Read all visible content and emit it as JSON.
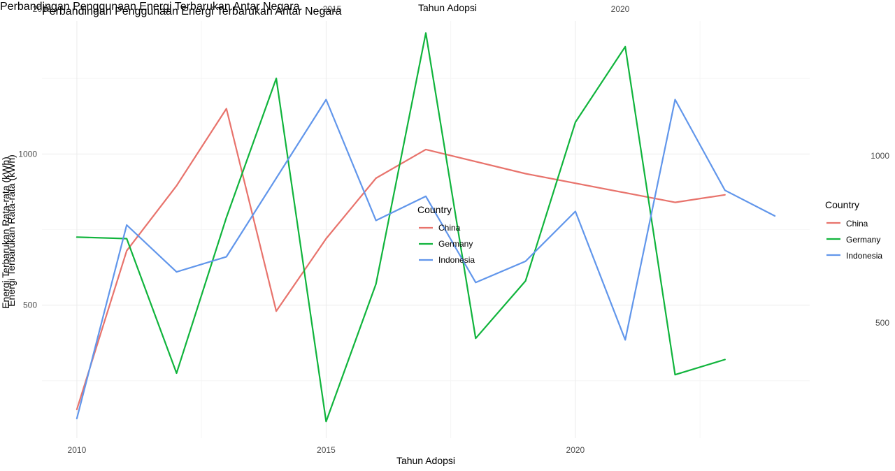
{
  "colors": {
    "China": "#e8736c",
    "Germany": "#10b43c",
    "Indonesia": "#6196eb",
    "grid": "#ebebeb",
    "text": "#4d4d4d"
  },
  "chart_data": {
    "type": "line",
    "title": "Perbandingan Penggunaan Energi Terbarukan Antar Negara",
    "ghost_title": "Perbandingan Penggunaan Energi Terbarukan Antar Negara",
    "xlabel": "Tahun Adopsi",
    "top_xlabel": "Tahun Adopsi",
    "ylabel": "Energi Terbarukan Rata-rata (kWh)",
    "ghost_ylabel": "Energi Terbarukan Rata-rata (kWh)",
    "x_ticks": [
      "2010",
      "2015",
      "2020"
    ],
    "y_ticks": [
      "500",
      "1000"
    ],
    "top_ticks": [
      "2010",
      "2015",
      "2020"
    ],
    "right_ticks": [
      "500",
      "1000"
    ],
    "xlim": [
      2009.3,
      2024.7
    ],
    "ylim": [
      60,
      1440
    ],
    "grid": true,
    "legend": {
      "title": "Country",
      "placement": "right",
      "entries": [
        "China",
        "Germany",
        "Indonesia"
      ]
    },
    "inner_legend": {
      "title": "Country",
      "placement": "center",
      "entries": [
        "China",
        "Germany",
        "Indonesia"
      ]
    },
    "series": [
      {
        "name": "China",
        "x": [
          2010,
          2011,
          2012,
          2013,
          2014,
          2015,
          2016,
          2017,
          2019,
          2022,
          2023
        ],
        "y": [
          155,
          680,
          895,
          1150,
          480,
          720,
          920,
          1015,
          935,
          840,
          865
        ]
      },
      {
        "name": "Germany",
        "x": [
          2010,
          2011,
          2012,
          2013,
          2014,
          2015,
          2016,
          2017,
          2018,
          2019,
          2020,
          2021,
          2022,
          2023
        ],
        "y": [
          725,
          720,
          275,
          790,
          1250,
          115,
          570,
          1400,
          390,
          580,
          1105,
          1355,
          270,
          320
        ]
      },
      {
        "name": "Indonesia",
        "x": [
          2010,
          2011,
          2012,
          2013,
          2015,
          2016,
          2017,
          2018,
          2019,
          2020,
          2021,
          2022,
          2023,
          2024
        ],
        "y": [
          125,
          765,
          610,
          660,
          1180,
          780,
          860,
          575,
          645,
          810,
          385,
          1180,
          880,
          795
        ]
      }
    ]
  }
}
